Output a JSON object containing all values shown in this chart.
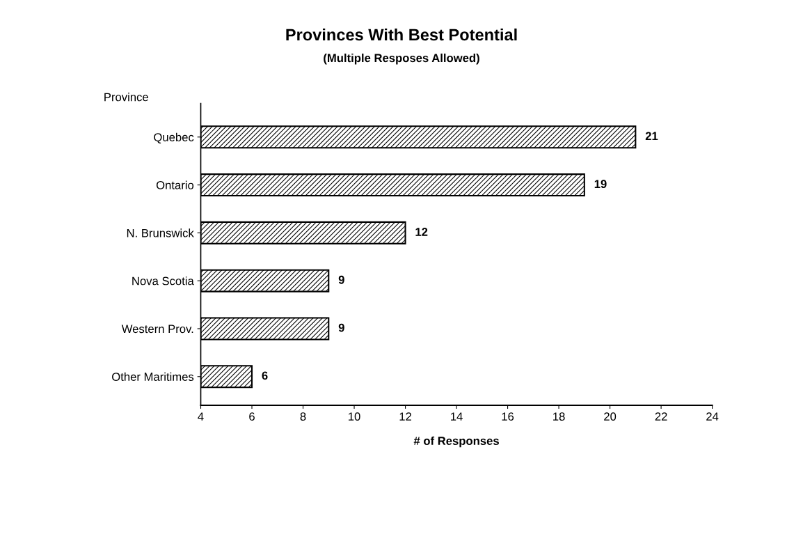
{
  "chart_data": {
    "type": "bar",
    "orientation": "horizontal",
    "title": "Provinces With Best Potential",
    "subtitle": "(Multiple Resposes Allowed)",
    "xlabel": "# of Responses",
    "ylabel": "Province",
    "categories": [
      "Quebec",
      "Ontario",
      "N. Brunswick",
      "Nova Scotia",
      "Western Prov.",
      "Other Maritimes"
    ],
    "values": [
      21,
      19,
      12,
      9,
      9,
      6
    ],
    "color": "#000000",
    "xlim": [
      4,
      24
    ],
    "xticks": [
      4,
      6,
      8,
      10,
      12,
      14,
      16,
      18,
      20,
      22,
      24
    ],
    "data_labels": true,
    "grid": false,
    "legend": false
  }
}
